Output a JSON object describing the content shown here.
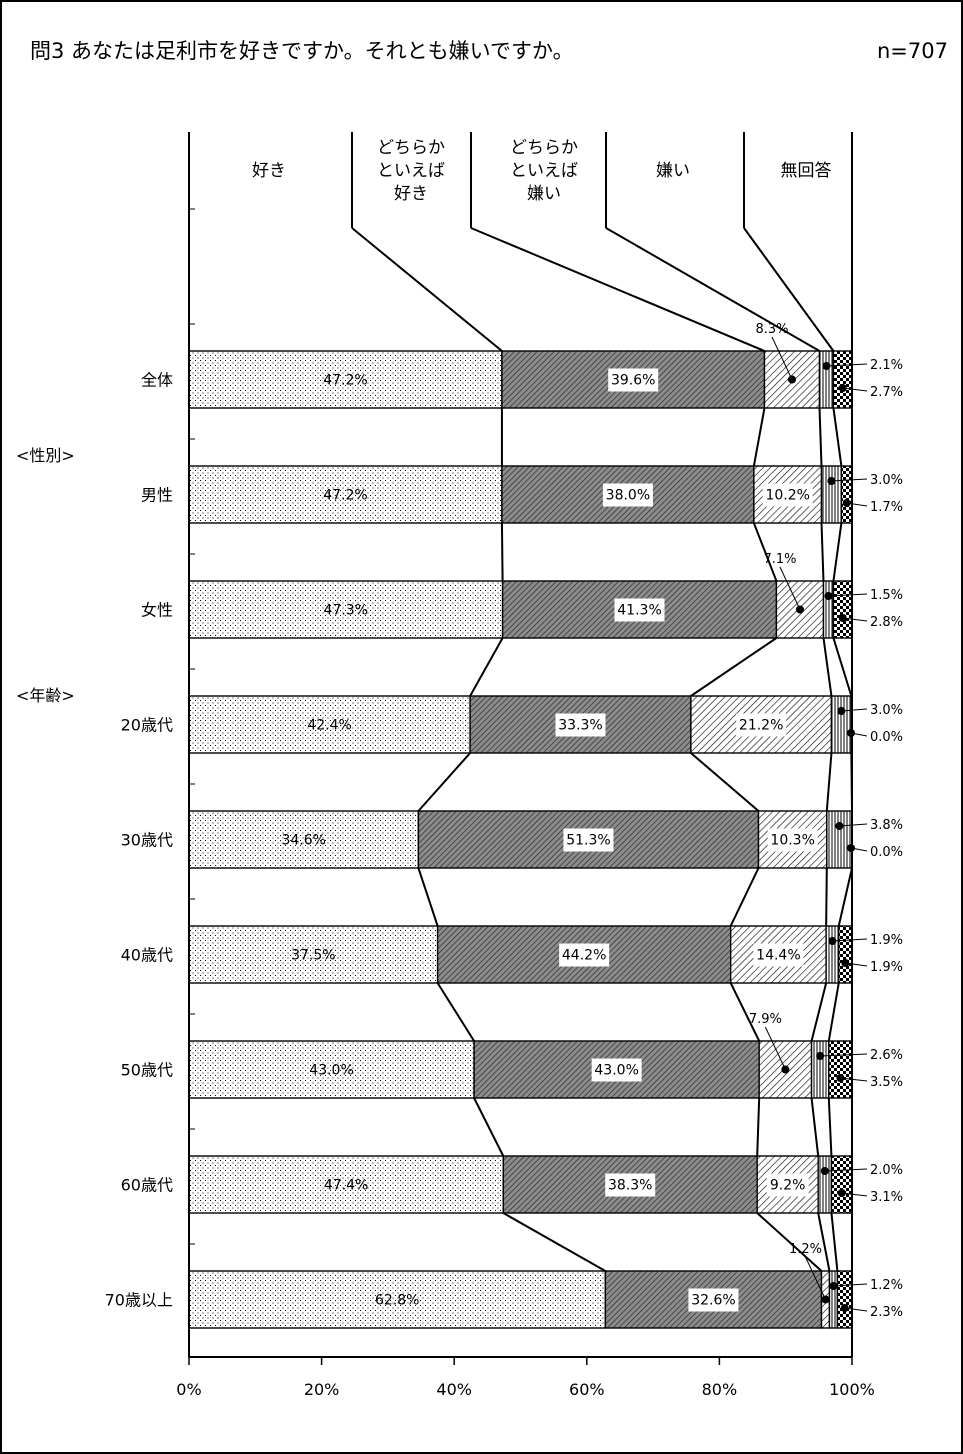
{
  "title": "問3 あなたは足利市を好きですか。それとも嫌いですか。",
  "sample": "n=707",
  "colors": {
    "line": "#000000",
    "bg": "#ffffff",
    "seg2": "#8c8c8c"
  },
  "chart_data": {
    "type": "bar",
    "orientation": "horizontal",
    "stacked": true,
    "title": "問3 あなたは足利市を好きですか。それとも嫌いですか。",
    "xlabel": "",
    "ylabel": "",
    "xlim": [
      0,
      100
    ],
    "x_ticks": [
      "0%",
      "20%",
      "40%",
      "60%",
      "80%",
      "100%"
    ],
    "grid": false,
    "legend_position": "top",
    "groups": [
      "<性別>",
      "<年齢>"
    ],
    "categories": [
      "全体",
      "男性",
      "女性",
      "20歳代",
      "30歳代",
      "40歳代",
      "50歳代",
      "60歳代",
      "70歳以上"
    ],
    "series": [
      {
        "name": "好き",
        "values": [
          47.2,
          47.2,
          47.3,
          42.4,
          34.6,
          37.5,
          43.0,
          47.4,
          62.8
        ]
      },
      {
        "name": "どちらかといえば好き",
        "values": [
          39.6,
          38.0,
          41.3,
          33.3,
          51.3,
          44.2,
          43.0,
          38.3,
          32.6
        ]
      },
      {
        "name": "どちらかといえば嫌い",
        "values": [
          8.3,
          10.2,
          7.1,
          21.2,
          10.3,
          14.4,
          7.9,
          9.2,
          1.2
        ]
      },
      {
        "name": "嫌い",
        "values": [
          2.1,
          3.0,
          1.5,
          3.0,
          3.8,
          1.9,
          2.6,
          2.0,
          1.2
        ]
      },
      {
        "name": "無回答",
        "values": [
          2.7,
          1.7,
          2.8,
          0.0,
          0.0,
          1.9,
          3.5,
          3.1,
          2.3
        ]
      }
    ],
    "legend_labels": [
      [
        "好き"
      ],
      [
        "どちらか",
        "といえば",
        "好き"
      ],
      [
        "どちらか",
        "といえば",
        "嫌い"
      ],
      [
        "嫌い"
      ],
      [
        "無回答"
      ]
    ],
    "value_labels": [
      [
        "47.2%",
        "47.2%",
        "47.3%",
        "42.4%",
        "34.6%",
        "37.5%",
        "43.0%",
        "47.4%",
        "62.8%"
      ],
      [
        "39.6%",
        "38.0%",
        "41.3%",
        "33.3%",
        "51.3%",
        "44.2%",
        "43.0%",
        "38.3%",
        "32.6%"
      ],
      [
        "8.3%",
        "10.2%",
        "7.1%",
        "21.2%",
        "10.3%",
        "14.4%",
        "7.9%",
        "9.2%",
        "1.2%"
      ],
      [
        "2.1%",
        "3.0%",
        "1.5%",
        "3.0%",
        "3.8%",
        "1.9%",
        "2.6%",
        "2.0%",
        "1.2%"
      ],
      [
        "2.7%",
        "1.7%",
        "2.8%",
        "0.0%",
        "0.0%",
        "1.9%",
        "3.5%",
        "3.1%",
        "2.3%"
      ]
    ]
  }
}
